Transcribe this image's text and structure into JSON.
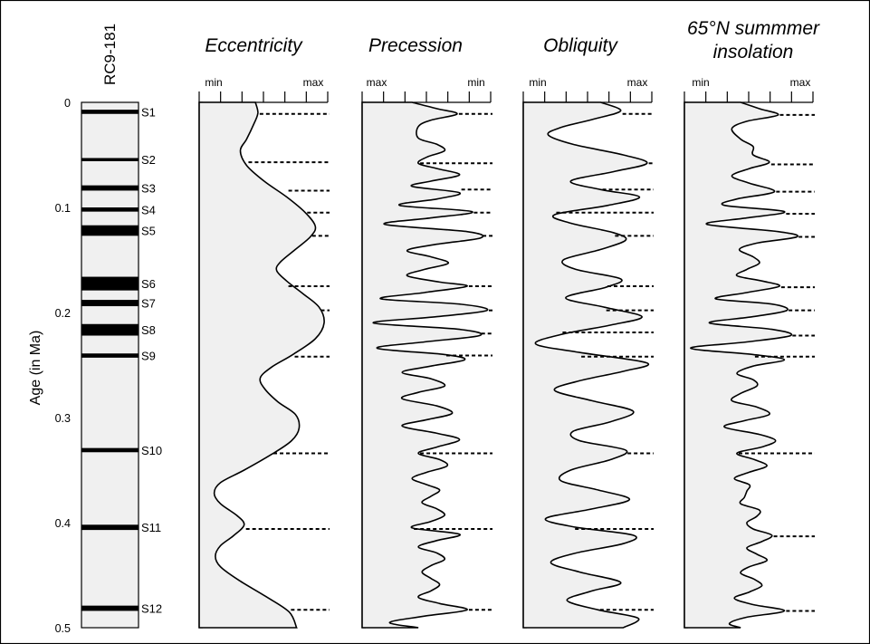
{
  "core": {
    "title": "RC9-181",
    "sapropels": [
      {
        "label": "S1",
        "top": 0.007,
        "bottom": 0.011
      },
      {
        "label": "S2",
        "top": 0.053,
        "bottom": 0.056
      },
      {
        "label": "S3",
        "top": 0.079,
        "bottom": 0.084
      },
      {
        "label": "S4",
        "top": 0.1,
        "bottom": 0.104
      },
      {
        "label": "S5",
        "top": 0.117,
        "bottom": 0.127
      },
      {
        "label": "S6",
        "top": 0.166,
        "bottom": 0.179
      },
      {
        "label": "S7",
        "top": 0.188,
        "bottom": 0.194
      },
      {
        "label": "S8",
        "top": 0.211,
        "bottom": 0.222
      },
      {
        "label": "S9",
        "top": 0.239,
        "bottom": 0.243
      },
      {
        "label": "S10",
        "top": 0.329,
        "bottom": 0.333
      },
      {
        "label": "S11",
        "top": 0.402,
        "bottom": 0.407
      },
      {
        "label": "S12",
        "top": 0.479,
        "bottom": 0.484
      }
    ]
  },
  "y_axis": {
    "label": "Age (in Ma)",
    "range": [
      0,
      0.5
    ],
    "tick_labels": [
      "0",
      "0.1",
      "0.2",
      "0.3",
      "0.4",
      "0.5"
    ]
  },
  "panels": [
    {
      "id": "eccentricity",
      "title": "Eccentricity",
      "title_line2": "",
      "scale_left": "min",
      "scale_right": "max",
      "curve": [
        [
          0.0,
          0.45
        ],
        [
          0.01,
          0.47
        ],
        [
          0.02,
          0.44
        ],
        [
          0.035,
          0.38
        ],
        [
          0.046,
          0.33
        ],
        [
          0.06,
          0.38
        ],
        [
          0.075,
          0.52
        ],
        [
          0.09,
          0.7
        ],
        [
          0.105,
          0.85
        ],
        [
          0.118,
          0.93
        ],
        [
          0.128,
          0.89
        ],
        [
          0.14,
          0.77
        ],
        [
          0.152,
          0.65
        ],
        [
          0.16,
          0.62
        ],
        [
          0.17,
          0.7
        ],
        [
          0.182,
          0.83
        ],
        [
          0.195,
          0.96
        ],
        [
          0.21,
          1.0
        ],
        [
          0.225,
          0.93
        ],
        [
          0.24,
          0.75
        ],
        [
          0.252,
          0.58
        ],
        [
          0.262,
          0.49
        ],
        [
          0.272,
          0.52
        ],
        [
          0.285,
          0.63
        ],
        [
          0.297,
          0.77
        ],
        [
          0.31,
          0.8
        ],
        [
          0.322,
          0.74
        ],
        [
          0.335,
          0.58
        ],
        [
          0.35,
          0.36
        ],
        [
          0.362,
          0.17
        ],
        [
          0.372,
          0.12
        ],
        [
          0.382,
          0.17
        ],
        [
          0.393,
          0.3
        ],
        [
          0.402,
          0.36
        ],
        [
          0.412,
          0.28
        ],
        [
          0.422,
          0.17
        ],
        [
          0.432,
          0.13
        ],
        [
          0.442,
          0.17
        ],
        [
          0.455,
          0.32
        ],
        [
          0.47,
          0.53
        ],
        [
          0.485,
          0.72
        ],
        [
          0.5,
          0.78
        ]
      ],
      "dashes": [
        0.011,
        0.057,
        0.084,
        0.105,
        0.127,
        0.175,
        0.198,
        0.242,
        0.334,
        0.406,
        0.483
      ]
    },
    {
      "id": "precession",
      "title": "Precession",
      "title_line2": "",
      "scale_left": "max",
      "scale_right": "min",
      "curve": [
        [
          0.0,
          0.4
        ],
        [
          0.006,
          0.6
        ],
        [
          0.011,
          0.76
        ],
        [
          0.017,
          0.55
        ],
        [
          0.023,
          0.45
        ],
        [
          0.034,
          0.45
        ],
        [
          0.04,
          0.6
        ],
        [
          0.046,
          0.66
        ],
        [
          0.052,
          0.52
        ],
        [
          0.058,
          0.45
        ],
        [
          0.063,
          0.6
        ],
        [
          0.069,
          0.78
        ],
        [
          0.075,
          0.55
        ],
        [
          0.08,
          0.4
        ],
        [
          0.086,
          0.78
        ],
        [
          0.092,
          0.6
        ],
        [
          0.098,
          0.3
        ],
        [
          0.104,
          0.88
        ],
        [
          0.11,
          0.55
        ],
        [
          0.116,
          0.18
        ],
        [
          0.123,
          0.84
        ],
        [
          0.129,
          0.95
        ],
        [
          0.135,
          0.6
        ],
        [
          0.141,
          0.36
        ],
        [
          0.147,
          0.55
        ],
        [
          0.153,
          0.69
        ],
        [
          0.159,
          0.5
        ],
        [
          0.165,
          0.36
        ],
        [
          0.171,
          0.62
        ],
        [
          0.175,
          0.84
        ],
        [
          0.181,
          0.5
        ],
        [
          0.187,
          0.15
        ],
        [
          0.192,
          0.78
        ],
        [
          0.198,
          1.0
        ],
        [
          0.204,
          0.6
        ],
        [
          0.21,
          0.09
        ],
        [
          0.216,
          0.78
        ],
        [
          0.222,
          0.94
        ],
        [
          0.228,
          0.5
        ],
        [
          0.234,
          0.12
        ],
        [
          0.24,
          0.66
        ],
        [
          0.245,
          0.82
        ],
        [
          0.251,
          0.55
        ],
        [
          0.257,
          0.32
        ],
        [
          0.263,
          0.55
        ],
        [
          0.27,
          0.66
        ],
        [
          0.276,
          0.45
        ],
        [
          0.282,
          0.32
        ],
        [
          0.289,
          0.6
        ],
        [
          0.296,
          0.72
        ],
        [
          0.302,
          0.52
        ],
        [
          0.308,
          0.32
        ],
        [
          0.315,
          0.6
        ],
        [
          0.321,
          0.78
        ],
        [
          0.328,
          0.6
        ],
        [
          0.334,
          0.45
        ],
        [
          0.34,
          0.62
        ],
        [
          0.346,
          0.68
        ],
        [
          0.352,
          0.52
        ],
        [
          0.358,
          0.4
        ],
        [
          0.364,
          0.52
        ],
        [
          0.369,
          0.62
        ],
        [
          0.375,
          0.55
        ],
        [
          0.381,
          0.48
        ],
        [
          0.387,
          0.6
        ],
        [
          0.393,
          0.66
        ],
        [
          0.399,
          0.55
        ],
        [
          0.405,
          0.4
        ],
        [
          0.411,
          0.78
        ],
        [
          0.417,
          0.6
        ],
        [
          0.423,
          0.45
        ],
        [
          0.429,
          0.6
        ],
        [
          0.435,
          0.66
        ],
        [
          0.441,
          0.55
        ],
        [
          0.447,
          0.48
        ],
        [
          0.453,
          0.55
        ],
        [
          0.459,
          0.62
        ],
        [
          0.465,
          0.55
        ],
        [
          0.471,
          0.45
        ],
        [
          0.477,
          0.62
        ],
        [
          0.483,
          0.84
        ],
        [
          0.489,
          0.5
        ],
        [
          0.495,
          0.22
        ],
        [
          0.5,
          0.45
        ]
      ],
      "dashes": [
        0.011,
        0.058,
        0.083,
        0.105,
        0.127,
        0.175,
        0.198,
        0.22,
        0.241,
        0.334,
        0.406,
        0.483
      ]
    },
    {
      "id": "obliquity",
      "title": "Obliquity",
      "title_line2": "",
      "scale_left": "min",
      "scale_right": "max",
      "curve": [
        [
          0.0,
          0.62
        ],
        [
          0.008,
          0.78
        ],
        [
          0.016,
          0.56
        ],
        [
          0.024,
          0.3
        ],
        [
          0.031,
          0.2
        ],
        [
          0.04,
          0.4
        ],
        [
          0.05,
          0.8
        ],
        [
          0.058,
          0.99
        ],
        [
          0.066,
          0.72
        ],
        [
          0.075,
          0.38
        ],
        [
          0.083,
          0.62
        ],
        [
          0.09,
          0.93
        ],
        [
          0.098,
          0.68
        ],
        [
          0.107,
          0.25
        ],
        [
          0.115,
          0.38
        ],
        [
          0.124,
          0.72
        ],
        [
          0.131,
          0.82
        ],
        [
          0.14,
          0.62
        ],
        [
          0.15,
          0.32
        ],
        [
          0.159,
          0.42
        ],
        [
          0.168,
          0.78
        ],
        [
          0.176,
          0.66
        ],
        [
          0.186,
          0.34
        ],
        [
          0.195,
          0.65
        ],
        [
          0.204,
          0.95
        ],
        [
          0.212,
          0.7
        ],
        [
          0.221,
          0.3
        ],
        [
          0.23,
          0.1
        ],
        [
          0.238,
          0.45
        ],
        [
          0.248,
          0.99
        ],
        [
          0.256,
          0.8
        ],
        [
          0.265,
          0.45
        ],
        [
          0.274,
          0.25
        ],
        [
          0.284,
          0.55
        ],
        [
          0.294,
          0.88
        ],
        [
          0.304,
          0.7
        ],
        [
          0.313,
          0.4
        ],
        [
          0.322,
          0.45
        ],
        [
          0.331,
          0.82
        ],
        [
          0.34,
          0.7
        ],
        [
          0.35,
          0.38
        ],
        [
          0.36,
          0.3
        ],
        [
          0.369,
          0.6
        ],
        [
          0.378,
          0.85
        ],
        [
          0.387,
          0.55
        ],
        [
          0.396,
          0.18
        ],
        [
          0.404,
          0.4
        ],
        [
          0.412,
          0.88
        ],
        [
          0.42,
          0.8
        ],
        [
          0.429,
          0.42
        ],
        [
          0.438,
          0.22
        ],
        [
          0.447,
          0.45
        ],
        [
          0.457,
          0.78
        ],
        [
          0.465,
          0.55
        ],
        [
          0.474,
          0.35
        ],
        [
          0.483,
          0.6
        ],
        [
          0.491,
          0.92
        ],
        [
          0.5,
          0.8
        ]
      ],
      "dashes": [
        0.011,
        0.058,
        0.083,
        0.105,
        0.127,
        0.175,
        0.198,
        0.219,
        0.242,
        0.334,
        0.406,
        0.483
      ]
    },
    {
      "id": "insolation",
      "title": "65°N summmer",
      "title_line2": "insolation",
      "scale_left": "min",
      "scale_right": "max",
      "curve": [
        [
          0.0,
          0.45
        ],
        [
          0.006,
          0.6
        ],
        [
          0.012,
          0.75
        ],
        [
          0.018,
          0.5
        ],
        [
          0.025,
          0.38
        ],
        [
          0.035,
          0.45
        ],
        [
          0.042,
          0.55
        ],
        [
          0.05,
          0.55
        ],
        [
          0.057,
          0.68
        ],
        [
          0.063,
          0.52
        ],
        [
          0.07,
          0.38
        ],
        [
          0.077,
          0.52
        ],
        [
          0.085,
          0.72
        ],
        [
          0.092,
          0.42
        ],
        [
          0.098,
          0.32
        ],
        [
          0.104,
          0.8
        ],
        [
          0.11,
          0.5
        ],
        [
          0.116,
          0.18
        ],
        [
          0.123,
          0.75
        ],
        [
          0.128,
          0.9
        ],
        [
          0.134,
          0.58
        ],
        [
          0.14,
          0.44
        ],
        [
          0.147,
          0.55
        ],
        [
          0.153,
          0.6
        ],
        [
          0.159,
          0.5
        ],
        [
          0.165,
          0.42
        ],
        [
          0.17,
          0.62
        ],
        [
          0.175,
          0.76
        ],
        [
          0.181,
          0.5
        ],
        [
          0.187,
          0.25
        ],
        [
          0.192,
          0.7
        ],
        [
          0.198,
          0.82
        ],
        [
          0.204,
          0.55
        ],
        [
          0.21,
          0.2
        ],
        [
          0.216,
          0.7
        ],
        [
          0.222,
          0.85
        ],
        [
          0.228,
          0.5
        ],
        [
          0.234,
          0.05
        ],
        [
          0.24,
          0.55
        ],
        [
          0.245,
          0.8
        ],
        [
          0.251,
          0.55
        ],
        [
          0.258,
          0.42
        ],
        [
          0.264,
          0.55
        ],
        [
          0.27,
          0.58
        ],
        [
          0.277,
          0.45
        ],
        [
          0.284,
          0.38
        ],
        [
          0.29,
          0.58
        ],
        [
          0.297,
          0.68
        ],
        [
          0.303,
          0.48
        ],
        [
          0.309,
          0.32
        ],
        [
          0.316,
          0.6
        ],
        [
          0.322,
          0.73
        ],
        [
          0.328,
          0.62
        ],
        [
          0.334,
          0.42
        ],
        [
          0.34,
          0.56
        ],
        [
          0.346,
          0.66
        ],
        [
          0.352,
          0.52
        ],
        [
          0.358,
          0.4
        ],
        [
          0.364,
          0.52
        ],
        [
          0.37,
          0.5
        ],
        [
          0.376,
          0.48
        ],
        [
          0.382,
          0.45
        ],
        [
          0.388,
          0.6
        ],
        [
          0.394,
          0.58
        ],
        [
          0.4,
          0.5
        ],
        [
          0.406,
          0.55
        ],
        [
          0.412,
          0.7
        ],
        [
          0.418,
          0.62
        ],
        [
          0.424,
          0.5
        ],
        [
          0.43,
          0.58
        ],
        [
          0.436,
          0.66
        ],
        [
          0.442,
          0.52
        ],
        [
          0.448,
          0.45
        ],
        [
          0.454,
          0.56
        ],
        [
          0.46,
          0.62
        ],
        [
          0.466,
          0.52
        ],
        [
          0.472,
          0.4
        ],
        [
          0.478,
          0.55
        ],
        [
          0.484,
          0.8
        ],
        [
          0.49,
          0.5
        ],
        [
          0.496,
          0.36
        ],
        [
          0.5,
          0.45
        ]
      ],
      "dashes": [
        0.012,
        0.059,
        0.085,
        0.106,
        0.128,
        0.176,
        0.198,
        0.222,
        0.242,
        0.334,
        0.413,
        0.484
      ]
    }
  ]
}
